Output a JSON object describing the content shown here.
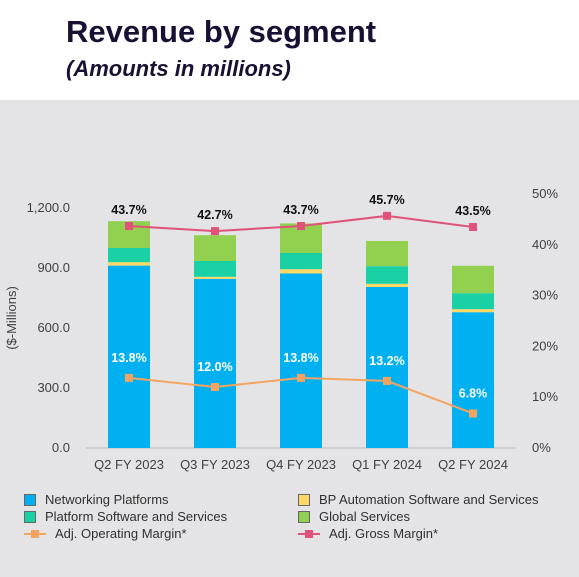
{
  "header": {
    "title": "Revenue by segment",
    "subtitle": "(Amounts in millions)"
  },
  "chart_data": {
    "type": "bar",
    "stacked": true,
    "categories": [
      "Q2 FY 2023",
      "Q3 FY 2023",
      "Q4 FY 2023",
      "Q1 FY 2024",
      "Q2 FY 2024"
    ],
    "ylabel": "($-Millions)",
    "ylim": [
      0,
      1300
    ],
    "yticks": [
      "0.0",
      "300.0",
      "600.0",
      "900.0",
      "1,200.0"
    ],
    "y2lim": [
      0,
      50
    ],
    "y2ticks": [
      "0%",
      "10%",
      "20%",
      "30%",
      "40%",
      "50%"
    ],
    "series": [
      {
        "name": "Networking Platforms",
        "color": "#00b0f0",
        "values": [
          912,
          846,
          873,
          805,
          679
        ]
      },
      {
        "name": "BP Automation Software and Services",
        "color": "#ffd966",
        "values": [
          17,
          10,
          21,
          16,
          15
        ]
      },
      {
        "name": "Platform Software and Services",
        "color": "#1ad1a5",
        "values": [
          71,
          79,
          81,
          88,
          80
        ]
      },
      {
        "name": "Global Services",
        "color": "#92d050",
        "values": [
          134,
          129,
          148,
          126,
          137
        ]
      }
    ],
    "lines": [
      {
        "name": "Adj. Operating Margin*",
        "color": "#f4a460",
        "axis": "right",
        "values": [
          13.8,
          12.0,
          13.8,
          13.2,
          6.8
        ],
        "labels": [
          "13.8%",
          "12.0%",
          "13.8%",
          "13.2%",
          "6.8%"
        ]
      },
      {
        "name": "Adj. Gross Margin*",
        "color": "#e0527a",
        "axis": "right",
        "values": [
          43.7,
          42.7,
          43.7,
          45.7,
          43.5
        ],
        "labels": [
          "43.7%",
          "42.7%",
          "43.7%",
          "45.7%",
          "43.5%"
        ]
      }
    ],
    "legend_order": [
      "Networking Platforms",
      "BP Automation Software and Services",
      "Platform Software and Services",
      "Global Services",
      "Adj. Operating Margin*",
      "Adj. Gross Margin*"
    ],
    "grid": false,
    "legend_position": "bottom"
  }
}
